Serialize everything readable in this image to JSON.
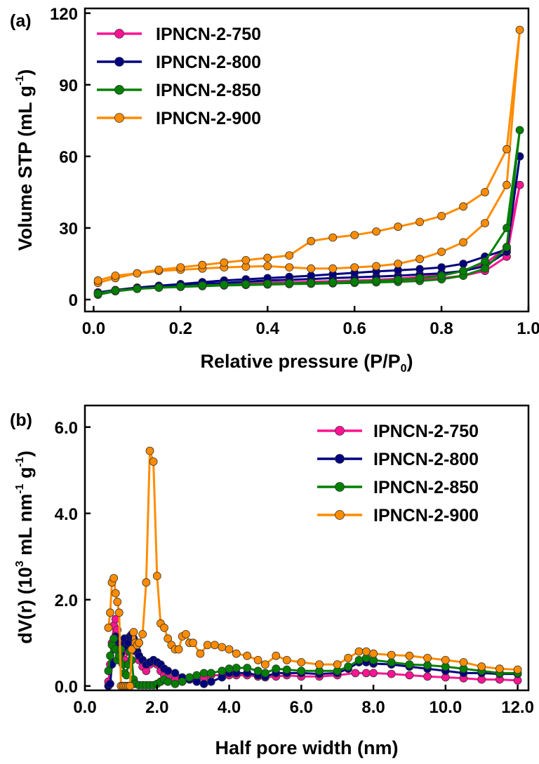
{
  "chart_data": [
    {
      "panel_label": "(a)",
      "type": "line",
      "xlabel": "Relative pressure (P/P",
      "xlabel_sub": "0",
      "xlabel_end": ")",
      "ylabel": "Volume STP (mL g",
      "ylabel_sup": "-1",
      "ylabel_end": ")",
      "xlim": [
        -0.02,
        1.0
      ],
      "ylim": [
        -5,
        122
      ],
      "xticks": [
        0.0,
        0.2,
        0.4,
        0.6,
        0.8,
        1.0
      ],
      "xtick_labels": [
        "0.0",
        "0.2",
        "0.4",
        "0.6",
        "0.8",
        "1.0"
      ],
      "yticks": [
        0,
        30,
        60,
        90,
        120
      ],
      "ytick_labels": [
        "0",
        "30",
        "60",
        "90",
        "120"
      ],
      "legend_position": "top-left",
      "series": [
        {
          "name": "IPNCN-2-750",
          "color": "#ff1493",
          "x": [
            0.01,
            0.05,
            0.1,
            0.15,
            0.2,
            0.25,
            0.3,
            0.35,
            0.4,
            0.45,
            0.5,
            0.55,
            0.6,
            0.65,
            0.7,
            0.75,
            0.8,
            0.85,
            0.9,
            0.95,
            0.98,
            0.95,
            0.9,
            0.85,
            0.8,
            0.75,
            0.7,
            0.65,
            0.6,
            0.55,
            0.5,
            0.45,
            0.4,
            0.35,
            0.3,
            0.25,
            0.2,
            0.15,
            0.1,
            0.05,
            0.01
          ],
          "y": [
            2.5,
            3.5,
            4.5,
            5,
            5.5,
            6,
            6.3,
            6.6,
            6.8,
            7,
            7.2,
            7.4,
            7.6,
            7.8,
            8,
            8.5,
            9,
            10,
            12,
            18,
            48,
            22,
            15,
            12,
            10.5,
            9.5,
            8.8,
            8.3,
            8,
            7.7,
            7.5,
            7.3,
            7.1,
            6.9,
            6.6,
            6.3,
            6,
            5.5,
            5,
            4,
            3
          ]
        },
        {
          "name": "IPNCN-2-800",
          "color": "#000080",
          "x": [
            0.01,
            0.05,
            0.1,
            0.15,
            0.2,
            0.25,
            0.3,
            0.35,
            0.4,
            0.45,
            0.5,
            0.55,
            0.6,
            0.65,
            0.7,
            0.75,
            0.8,
            0.85,
            0.9,
            0.95,
            0.98,
            0.95,
            0.9,
            0.85,
            0.8,
            0.75,
            0.7,
            0.65,
            0.6,
            0.55,
            0.5,
            0.45,
            0.4,
            0.35,
            0.3,
            0.25,
            0.2,
            0.15,
            0.1,
            0.05,
            0.01
          ],
          "y": [
            2.5,
            3.8,
            4.8,
            5.5,
            6,
            6.5,
            7,
            7.5,
            8,
            8.3,
            8.6,
            9,
            9.3,
            9.6,
            10,
            10.5,
            11,
            12,
            14,
            20,
            60,
            21,
            18,
            15,
            13.5,
            12.8,
            12.3,
            11.8,
            11.2,
            10.6,
            10,
            9.5,
            9,
            8.5,
            8,
            7.3,
            6.5,
            5.8,
            5,
            4,
            3
          ]
        },
        {
          "name": "IPNCN-2-850",
          "color": "#008000",
          "x": [
            0.01,
            0.05,
            0.1,
            0.15,
            0.2,
            0.25,
            0.3,
            0.35,
            0.4,
            0.45,
            0.5,
            0.55,
            0.6,
            0.65,
            0.7,
            0.75,
            0.8,
            0.85,
            0.9,
            0.95,
            0.98,
            0.95,
            0.9,
            0.85,
            0.8,
            0.75,
            0.7,
            0.65,
            0.6,
            0.55,
            0.5,
            0.45,
            0.4,
            0.35,
            0.3,
            0.25,
            0.2,
            0.15,
            0.1,
            0.05,
            0.01
          ],
          "y": [
            2,
            3.5,
            4.5,
            5,
            5.3,
            5.6,
            5.9,
            6.1,
            6.3,
            6.5,
            6.6,
            6.8,
            7,
            7.2,
            7.4,
            7.8,
            8.5,
            10,
            13,
            22,
            71,
            30,
            16,
            12,
            10,
            9,
            8.3,
            7.8,
            7.5,
            7.2,
            7,
            6.8,
            6.6,
            6.4,
            6.2,
            5.9,
            5.5,
            5,
            4.5,
            3.8,
            2.5
          ]
        },
        {
          "name": "IPNCN-2-900",
          "color": "#ff8c00",
          "x": [
            0.01,
            0.05,
            0.1,
            0.15,
            0.2,
            0.25,
            0.3,
            0.35,
            0.4,
            0.45,
            0.5,
            0.55,
            0.6,
            0.65,
            0.7,
            0.75,
            0.8,
            0.85,
            0.9,
            0.95,
            0.98,
            0.95,
            0.9,
            0.85,
            0.8,
            0.75,
            0.7,
            0.65,
            0.6,
            0.55,
            0.5,
            0.45,
            0.4,
            0.35,
            0.3,
            0.25,
            0.2,
            0.15,
            0.1,
            0.05,
            0.01
          ],
          "y": [
            7,
            9,
            11,
            12,
            12.5,
            13,
            13.5,
            13.8,
            14,
            13.5,
            13,
            13,
            13.5,
            14,
            15,
            17,
            20,
            24,
            32,
            48,
            113,
            63,
            45,
            39,
            35,
            32.5,
            30.5,
            28.5,
            27,
            26,
            24.5,
            18.5,
            17.5,
            16.5,
            15.5,
            14.5,
            13.5,
            12.5,
            11,
            10,
            8
          ]
        }
      ]
    },
    {
      "panel_label": "(b)",
      "type": "line",
      "xlabel": "Half pore width (nm)",
      "ylabel": "dV(r) (10",
      "ylabel_sup1": "3",
      "ylabel_mid": " mL nm",
      "ylabel_sup2": "-1",
      "ylabel_mid2": " g",
      "ylabel_sup3": "-1",
      "ylabel_end": ")",
      "xlim": [
        0.0,
        12.3
      ],
      "ylim": [
        -0.1,
        6.5
      ],
      "xticks": [
        0,
        2,
        4,
        6,
        8,
        10,
        12
      ],
      "xtick_labels": [
        "0.0",
        "2.0",
        "4.0",
        "6.0",
        "8.0",
        "10.0",
        "12.0"
      ],
      "yticks": [
        0,
        2,
        4,
        6
      ],
      "ytick_labels": [
        "0.0",
        "2.0",
        "4.0",
        "6.0"
      ],
      "legend_position": "top-right",
      "series": [
        {
          "name": "IPNCN-2-750",
          "color": "#ff1493",
          "x": [
            0.65,
            0.7,
            0.75,
            0.8,
            0.85,
            0.9,
            0.95,
            1.0,
            1.05,
            1.1,
            1.2,
            1.3,
            1.4,
            1.5,
            1.6,
            1.7,
            1.8,
            1.9,
            2.0,
            2.1,
            2.2,
            2.3,
            2.5,
            2.7,
            2.9,
            3.1,
            3.3,
            3.5,
            3.8,
            4.0,
            4.2,
            4.5,
            4.8,
            5.0,
            5.3,
            5.6,
            6.0,
            6.5,
            7.0,
            7.5,
            7.8,
            8.0,
            8.5,
            9.0,
            9.5,
            10.0,
            10.5,
            11.0,
            11.5,
            12.0
          ],
          "y": [
            0.1,
            0.5,
            1.0,
            1.4,
            1.55,
            1.3,
            0.9,
            0.6,
            0.5,
            0.6,
            0.8,
            0.9,
            0.8,
            0.6,
            0.45,
            0.35,
            0.5,
            0.6,
            0.5,
            0.35,
            0.25,
            0.2,
            0.15,
            0.12,
            0.15,
            0.2,
            0.2,
            0.25,
            0.25,
            0.25,
            0.25,
            0.25,
            0.22,
            0.2,
            0.22,
            0.25,
            0.22,
            0.22,
            0.25,
            0.3,
            0.3,
            0.3,
            0.28,
            0.25,
            0.22,
            0.2,
            0.18,
            0.15,
            0.15,
            0.13
          ]
        },
        {
          "name": "IPNCN-2-800",
          "color": "#000080",
          "x": [
            0.65,
            0.7,
            0.75,
            0.8,
            0.85,
            0.9,
            0.95,
            1.0,
            1.05,
            1.1,
            1.15,
            1.2,
            1.25,
            1.3,
            1.35,
            1.4,
            1.45,
            1.5,
            1.6,
            1.7,
            1.8,
            1.9,
            2.0,
            2.1,
            2.2,
            2.3,
            2.5,
            2.7,
            2.9,
            3.1,
            3.3,
            3.5,
            3.8,
            4.0,
            4.2,
            4.5,
            4.8,
            5.0,
            5.3,
            5.6,
            6.0,
            6.5,
            7.0,
            7.3,
            7.6,
            7.8,
            8.0,
            8.5,
            9.0,
            9.5,
            10.0,
            10.5,
            11.0,
            11.5,
            12.0
          ],
          "y": [
            0.0,
            0.05,
            0.5,
            1.0,
            1.15,
            1.0,
            0.9,
            0.75,
            0.95,
            1.1,
            0.9,
            1.0,
            1.15,
            1.2,
            1.1,
            1.0,
            0.8,
            0.7,
            0.6,
            0.5,
            0.55,
            0.6,
            0.55,
            0.5,
            0.4,
            0.35,
            0.3,
            0.2,
            0.15,
            0.1,
            0.05,
            0.1,
            0.2,
            0.3,
            0.3,
            0.3,
            0.25,
            0.22,
            0.3,
            0.3,
            0.3,
            0.28,
            0.3,
            0.4,
            0.55,
            0.55,
            0.52,
            0.5,
            0.45,
            0.4,
            0.35,
            0.3,
            0.3,
            0.28,
            0.28
          ]
        },
        {
          "name": "IPNCN-2-850",
          "color": "#008000",
          "x": [
            0.65,
            0.7,
            0.75,
            0.8,
            0.85,
            0.9,
            0.95,
            1.0,
            1.05,
            1.1,
            1.15,
            1.2,
            1.25,
            1.3,
            1.35,
            1.4,
            1.5,
            1.6,
            1.7,
            1.8,
            1.9,
            2.0,
            2.1,
            2.2,
            2.3,
            2.5,
            2.7,
            2.9,
            3.1,
            3.3,
            3.5,
            3.8,
            4.0,
            4.2,
            4.5,
            4.8,
            5.0,
            5.3,
            5.6,
            6.0,
            6.5,
            7.0,
            7.3,
            7.6,
            7.8,
            8.0,
            8.5,
            9.0,
            9.5,
            10.0,
            10.5,
            11.0,
            11.5,
            12.0
          ],
          "y": [
            0.35,
            0.7,
            0.95,
            1.1,
            0.85,
            0.6,
            0.7,
            0.85,
            0.5,
            0.3,
            0.25,
            0.5,
            0.8,
            0.6,
            0.15,
            0.05,
            0.02,
            0.02,
            0.02,
            0.02,
            0.02,
            0.05,
            0.1,
            0.15,
            0.1,
            0.05,
            0.1,
            0.2,
            0.25,
            0.3,
            0.3,
            0.35,
            0.4,
            0.42,
            0.42,
            0.35,
            0.3,
            0.4,
            0.38,
            0.35,
            0.35,
            0.35,
            0.45,
            0.6,
            0.65,
            0.6,
            0.55,
            0.5,
            0.48,
            0.45,
            0.4,
            0.35,
            0.3,
            0.3
          ]
        },
        {
          "name": "IPNCN-2-900",
          "color": "#ff8c00",
          "x": [
            0.65,
            0.7,
            0.75,
            0.8,
            0.85,
            0.9,
            0.95,
            1.0,
            1.05,
            1.1,
            1.15,
            1.2,
            1.25,
            1.3,
            1.35,
            1.4,
            1.45,
            1.5,
            1.6,
            1.7,
            1.8,
            1.9,
            2.0,
            2.1,
            2.2,
            2.3,
            2.4,
            2.5,
            2.6,
            2.7,
            2.8,
            2.9,
            3.0,
            3.2,
            3.4,
            3.6,
            3.8,
            4.0,
            4.2,
            4.5,
            4.8,
            5.0,
            5.3,
            5.6,
            6.0,
            6.5,
            7.0,
            7.3,
            7.6,
            7.8,
            8.0,
            8.5,
            9.0,
            9.5,
            10.0,
            10.5,
            11.0,
            11.5,
            12.0
          ],
          "y": [
            1.35,
            1.7,
            2.4,
            2.5,
            2.15,
            1.95,
            1.7,
            0.0,
            0.0,
            0.0,
            0.0,
            0.0,
            0.0,
            0.85,
            1.25,
            1.0,
            0.95,
            1.0,
            1.2,
            2.4,
            5.45,
            5.2,
            2.55,
            1.45,
            1.35,
            1.1,
            0.95,
            0.85,
            0.85,
            1.15,
            1.2,
            1.0,
            1.0,
            0.75,
            0.95,
            0.95,
            0.9,
            0.85,
            0.75,
            0.7,
            0.6,
            0.5,
            0.7,
            0.6,
            0.55,
            0.5,
            0.5,
            0.65,
            0.8,
            0.8,
            0.75,
            0.72,
            0.7,
            0.65,
            0.6,
            0.55,
            0.45,
            0.4,
            0.38
          ]
        }
      ]
    }
  ]
}
